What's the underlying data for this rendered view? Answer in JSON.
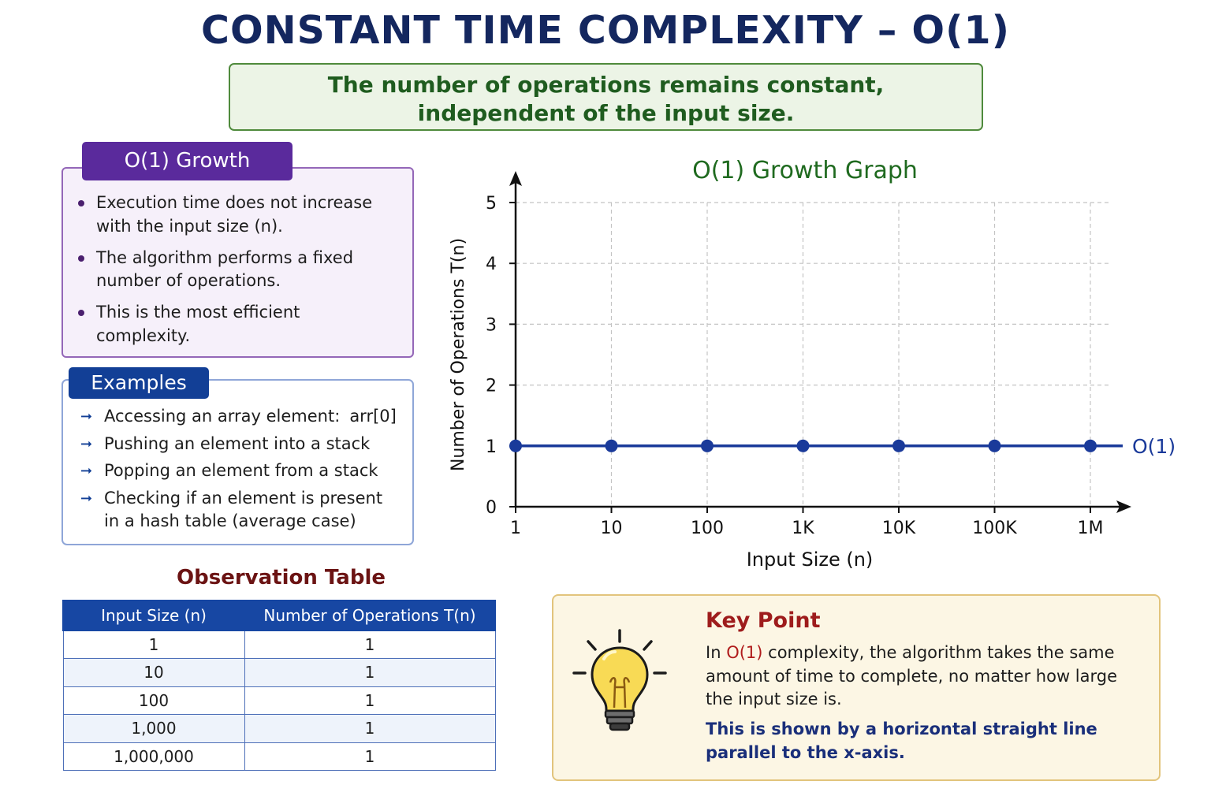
{
  "title": "CONSTANT TIME COMPLEXITY – O(1)",
  "subtitle": {
    "line1": "The number of operations remains constant,",
    "line2": "independent of the input size."
  },
  "growth": {
    "heading": "O(1) Growth",
    "bullets": [
      [
        "Execution time does not increase",
        "with the input size (n)."
      ],
      [
        "The algorithm performs a fixed",
        "number of operations."
      ],
      [
        "This is the most efficient",
        "complexity."
      ]
    ]
  },
  "examples": {
    "heading": "Examples",
    "items": [
      {
        "text": "Accessing an array element:",
        "code": "arr[0]"
      },
      {
        "text": "Pushing an element into a stack"
      },
      {
        "text": "Popping an element from a stack"
      },
      {
        "text": "Checking if an element is present",
        "line2": "in a hash table (average case)"
      }
    ]
  },
  "table": {
    "title": "Observation Table",
    "headers": [
      "Input Size (n)",
      "Number of Operations T(n)"
    ],
    "rows": [
      [
        "1",
        "1"
      ],
      [
        "10",
        "1"
      ],
      [
        "100",
        "1"
      ],
      [
        "1,000",
        "1"
      ],
      [
        "1,000,000",
        "1"
      ]
    ]
  },
  "key_point": {
    "title": "Key Point",
    "text_before": "In ",
    "text_highlight": "O(1)",
    "text_line1_rest": " complexity, the algorithm takes the same",
    "text_line2": "amount of time to complete, no matter how large",
    "text_line3": "the input size is.",
    "note_line1": "This is shown by a horizontal straight line",
    "note_line2": "parallel to the x-axis.",
    "icon": "lightbulb-icon"
  },
  "colors": {
    "title": "#14275f",
    "line": "#1a3a9a",
    "chart_title": "#1f6a1f"
  },
  "chart_data": {
    "type": "line",
    "title": "O(1) Growth Graph",
    "xlabel": "Input Size (n)",
    "ylabel": "Number of Operations T(n)",
    "categories": [
      "1",
      "10",
      "100",
      "1K",
      "10K",
      "100K",
      "1M"
    ],
    "yticks": [
      "0",
      "1",
      "2",
      "3",
      "4",
      "5"
    ],
    "ylim": [
      0,
      5
    ],
    "grid": true,
    "series": [
      {
        "name": "O(1)",
        "values": [
          1,
          1,
          1,
          1,
          1,
          1,
          1
        ],
        "color": "#1a3a9a"
      }
    ]
  }
}
